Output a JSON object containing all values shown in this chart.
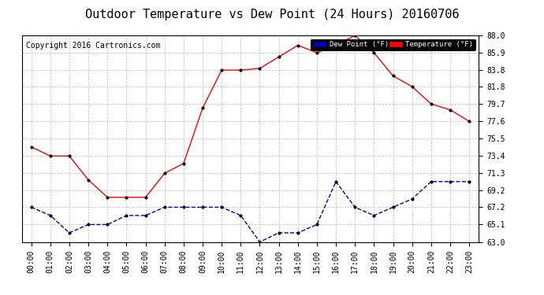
{
  "title": "Outdoor Temperature vs Dew Point (24 Hours) 20160706",
  "copyright": "Copyright 2016 Cartronics.com",
  "hours": [
    "00:00",
    "01:00",
    "02:00",
    "03:00",
    "04:00",
    "05:00",
    "06:00",
    "07:00",
    "08:00",
    "09:00",
    "10:00",
    "11:00",
    "12:00",
    "13:00",
    "14:00",
    "15:00",
    "16:00",
    "17:00",
    "18:00",
    "19:00",
    "20:00",
    "21:00",
    "22:00",
    "23:00"
  ],
  "temperature": [
    74.5,
    73.4,
    73.4,
    70.5,
    68.4,
    68.4,
    68.4,
    71.3,
    72.5,
    79.2,
    83.8,
    83.8,
    84.0,
    85.4,
    86.8,
    85.9,
    86.8,
    88.0,
    85.9,
    83.1,
    81.8,
    79.7,
    79.0,
    77.6
  ],
  "dew_point": [
    67.2,
    66.2,
    64.1,
    65.1,
    65.1,
    66.2,
    66.2,
    67.2,
    67.2,
    67.2,
    67.2,
    66.2,
    63.0,
    64.1,
    64.1,
    65.1,
    70.3,
    67.2,
    66.2,
    67.2,
    68.2,
    70.3,
    70.3,
    70.3
  ],
  "temp_color": "#ff0000",
  "dew_color": "#0000bb",
  "bg_color": "#ffffff",
  "plot_bg_color": "#ffffff",
  "grid_color": "#bbbbbb",
  "ylim_min": 63.0,
  "ylim_max": 88.0,
  "yticks": [
    63.0,
    65.1,
    67.2,
    69.2,
    71.3,
    73.4,
    75.5,
    77.6,
    79.7,
    81.8,
    83.8,
    85.9,
    88.0
  ],
  "legend_dew_label": "Dew Point (°F)",
  "legend_temp_label": "Temperature (°F)",
  "title_fontsize": 11,
  "tick_fontsize": 7,
  "copyright_fontsize": 7
}
